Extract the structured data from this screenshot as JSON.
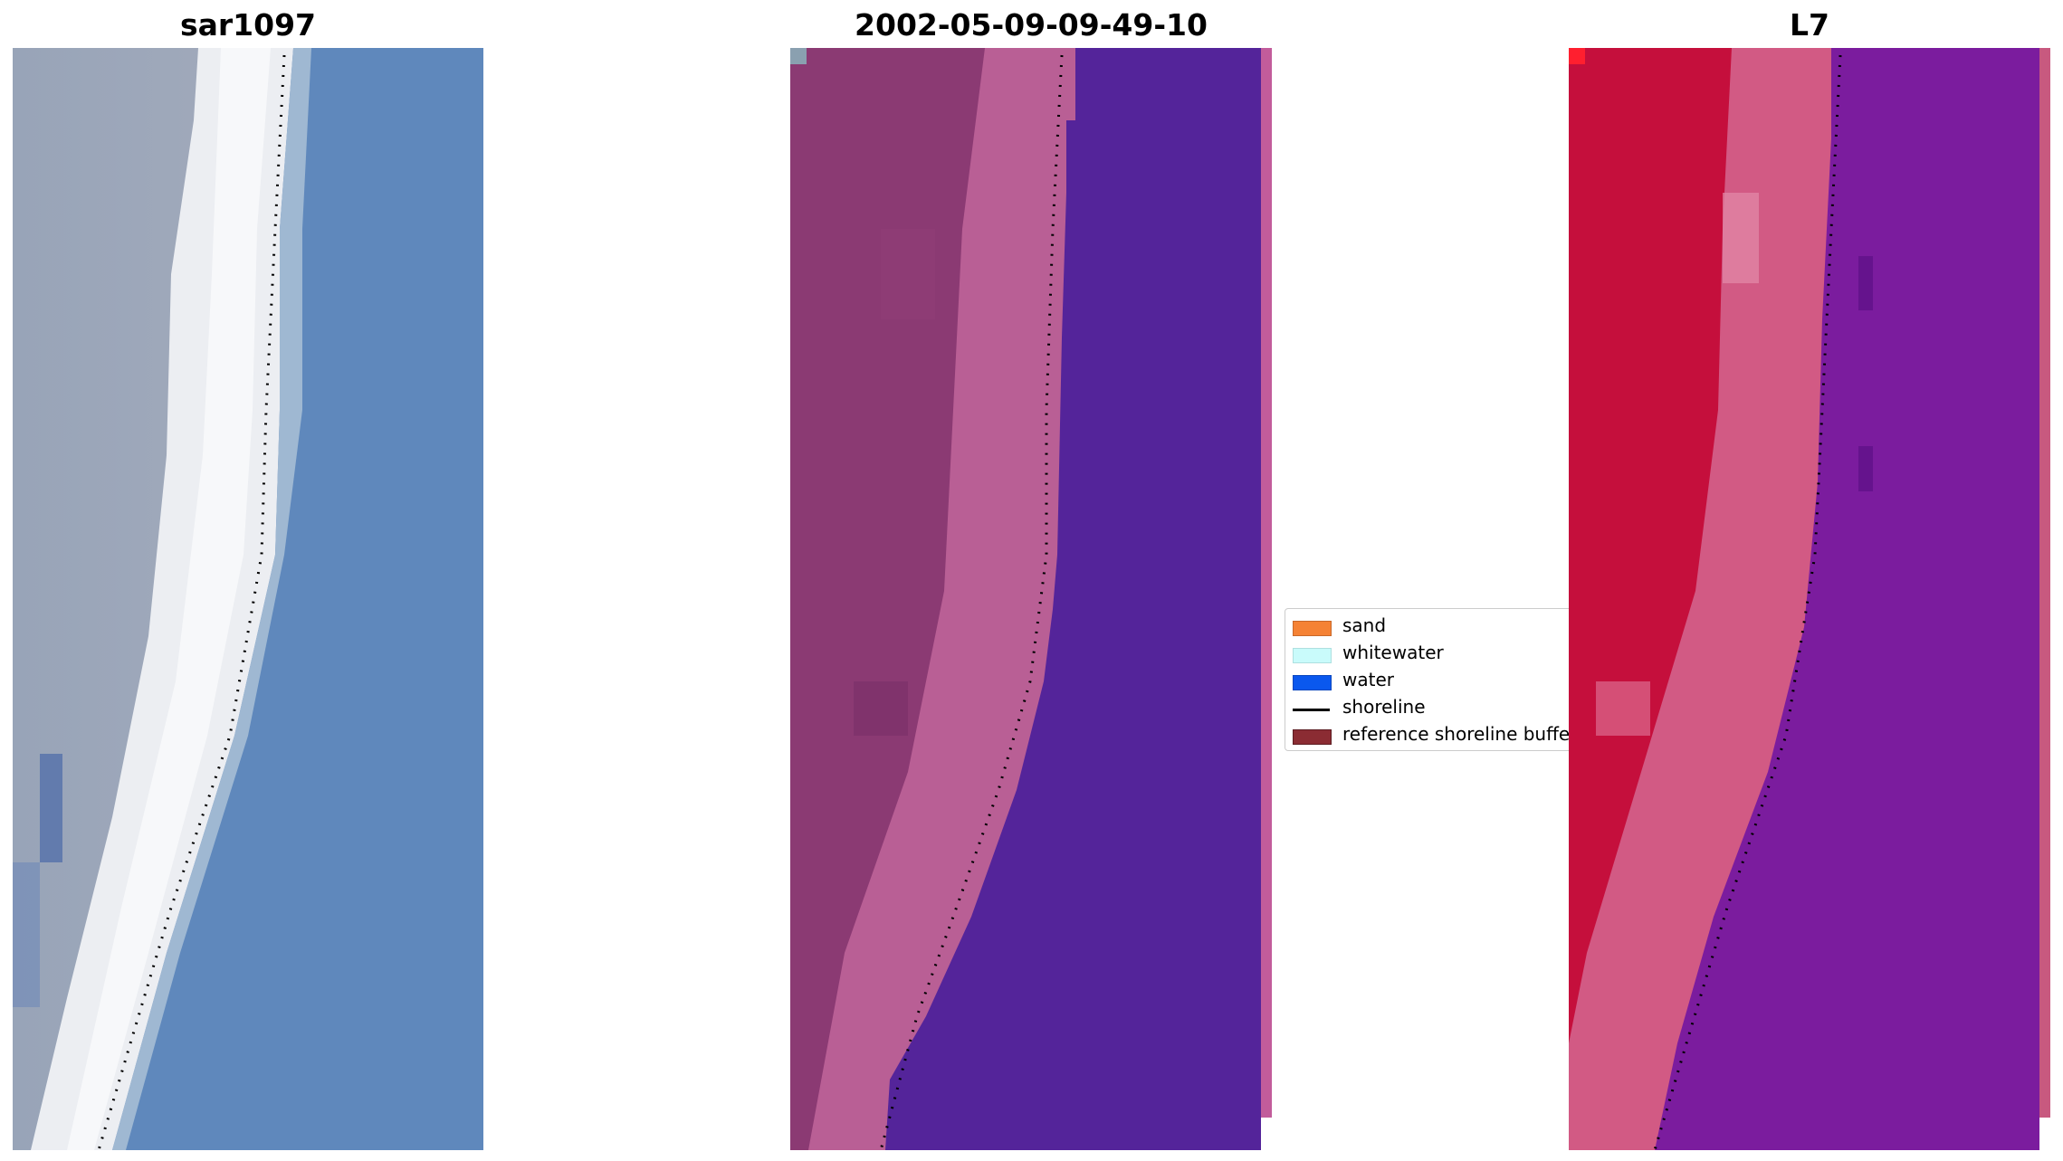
{
  "titles": {
    "panel1": "sar1097",
    "panel2": "2002-05-09-09-49-10",
    "panel3": "L7"
  },
  "legend": {
    "items": [
      {
        "label": "sand",
        "kind": "patch",
        "color": "#f58234"
      },
      {
        "label": "whitewater",
        "kind": "patch",
        "color": "#c9fbfb"
      },
      {
        "label": "water",
        "kind": "patch",
        "color": "#0a58ee"
      },
      {
        "label": "shoreline",
        "kind": "line",
        "color": "#000000"
      },
      {
        "label": "reference shoreline buffer",
        "kind": "patch",
        "color": "#8b2c33"
      }
    ]
  },
  "colors": {
    "rgb_land": "#9aa5b9",
    "rgb_beach": "#eef0f4",
    "rgb_water": "#5f88bc",
    "class_land": "#8b3a73",
    "class_beach": "#b95f95",
    "class_water": "#54249a",
    "ndwi_land": "#c50f3c",
    "ndwi_beach": "#d65c88",
    "ndwi_water": "#7b1c9e"
  }
}
